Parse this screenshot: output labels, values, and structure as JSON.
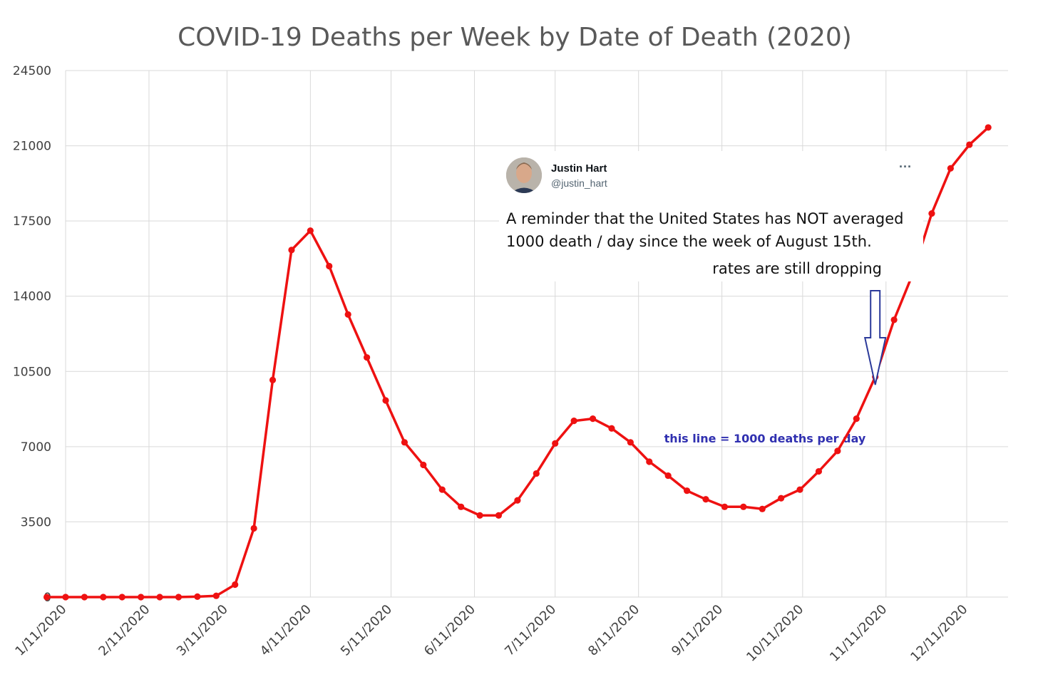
{
  "chart_data": {
    "type": "line",
    "title": "COVID-19 Deaths per Week by Date of Death (2020)",
    "xlabel": "",
    "ylabel": "",
    "ylim": [
      0,
      24500
    ],
    "y_ticks": [
      "0",
      "3500",
      "7000",
      "10500",
      "14000",
      "17500",
      "21000",
      "24500"
    ],
    "x_ticks": [
      "1/11/2020",
      "2/11/2020",
      "3/11/2020",
      "4/11/2020",
      "5/11/2020",
      "6/11/2020",
      "7/11/2020",
      "8/11/2020",
      "9/11/2020",
      "10/11/2020",
      "11/11/2020",
      "12/11/2020"
    ],
    "grid": true,
    "series": [
      {
        "color": "#ee1111",
        "points": [
          [
            "2020-01-04",
            0
          ],
          [
            "2020-01-11",
            0
          ],
          [
            "2020-01-18",
            0
          ],
          [
            "2020-01-25",
            0
          ],
          [
            "2020-02-01",
            0
          ],
          [
            "2020-02-08",
            0
          ],
          [
            "2020-02-15",
            0
          ],
          [
            "2020-02-22",
            0
          ],
          [
            "2020-02-29",
            20
          ],
          [
            "2020-03-07",
            60
          ],
          [
            "2020-03-14",
            580
          ],
          [
            "2020-03-21",
            3200
          ],
          [
            "2020-03-28",
            10100
          ],
          [
            "2020-04-04",
            16150
          ],
          [
            "2020-04-11",
            17050
          ],
          [
            "2020-04-18",
            15400
          ],
          [
            "2020-04-25",
            13150
          ],
          [
            "2020-05-02",
            11150
          ],
          [
            "2020-05-09",
            9150
          ],
          [
            "2020-05-16",
            7200
          ],
          [
            "2020-05-23",
            6150
          ],
          [
            "2020-05-30",
            5000
          ],
          [
            "2020-06-06",
            4200
          ],
          [
            "2020-06-13",
            3800
          ],
          [
            "2020-06-20",
            3800
          ],
          [
            "2020-06-27",
            4500
          ],
          [
            "2020-07-04",
            5750
          ],
          [
            "2020-07-11",
            7150
          ],
          [
            "2020-07-18",
            8200
          ],
          [
            "2020-07-25",
            8300
          ],
          [
            "2020-08-01",
            7850
          ],
          [
            "2020-08-08",
            7200
          ],
          [
            "2020-08-15",
            6300
          ],
          [
            "2020-08-22",
            5650
          ],
          [
            "2020-08-29",
            4950
          ],
          [
            "2020-09-05",
            4550
          ],
          [
            "2020-09-12",
            4200
          ],
          [
            "2020-09-19",
            4200
          ],
          [
            "2020-09-26",
            4100
          ],
          [
            "2020-10-03",
            4600
          ],
          [
            "2020-10-10",
            5000
          ],
          [
            "2020-10-17",
            5850
          ],
          [
            "2020-10-24",
            6800
          ],
          [
            "2020-10-31",
            8300
          ],
          [
            "2020-11-07",
            10250
          ],
          [
            "2020-11-14",
            12900
          ],
          [
            "2020-11-21",
            15050
          ],
          [
            "2020-11-28",
            17850
          ],
          [
            "2020-12-05",
            19950
          ],
          [
            "2020-12-12",
            21050
          ],
          [
            "2020-12-19",
            21850
          ]
        ]
      }
    ],
    "reference_line": {
      "y": 7000,
      "label": "this line = 1000 deaths per day"
    },
    "annotation": {
      "tweet": {
        "name": "Justin Hart",
        "handle": "@justin_hart",
        "more": "···"
      },
      "lines": [
        "A reminder that the United States has NOT averaged",
        "1000 death / day since the week of August 15th."
      ],
      "note": "rates are still dropping",
      "arrow_target": "2020-11-07"
    }
  }
}
